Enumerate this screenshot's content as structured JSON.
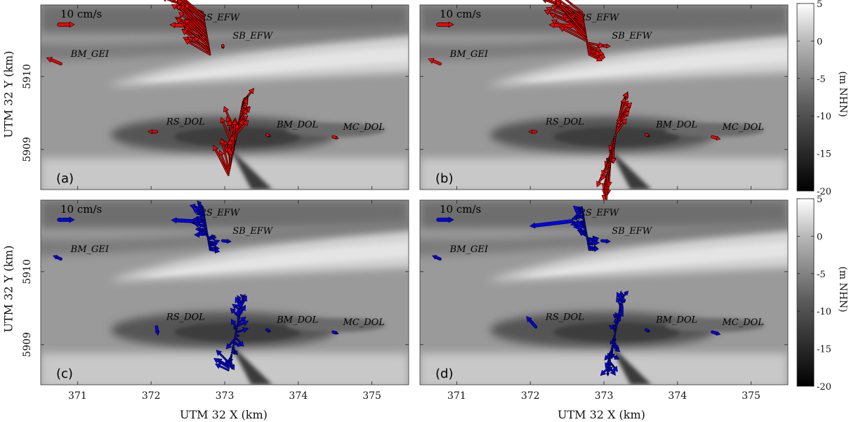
{
  "chart_data": {
    "type": "vector-field-map",
    "panels": [
      {
        "label": "(a)",
        "color": "#ff0000",
        "row": 0,
        "col": 0,
        "stations": [
          {
            "name": "RS_EFW",
            "x": 372.6,
            "y": 5910.75
          },
          {
            "name": "SB_EFW",
            "x": 373.05,
            "y": 5910.5
          },
          {
            "name": "BM_GEI",
            "x": 370.85,
            "y": 5910.25
          },
          {
            "name": "RS_DOL",
            "x": 372.15,
            "y": 5909.32
          },
          {
            "name": "BM_DOL",
            "x": 373.65,
            "y": 5909.28
          },
          {
            "name": "MC_DOL",
            "x": 374.55,
            "y": 5909.25
          }
        ]
      },
      {
        "label": "(b)",
        "color": "#ff0000",
        "row": 0,
        "col": 1,
        "stations": [
          {
            "name": "RS_EFW",
            "x": 372.6,
            "y": 5910.75
          },
          {
            "name": "SB_EFW",
            "x": 373.05,
            "y": 5910.5
          },
          {
            "name": "BM_GEI",
            "x": 370.85,
            "y": 5910.25
          },
          {
            "name": "RS_DOL",
            "x": 372.15,
            "y": 5909.32
          },
          {
            "name": "BM_DOL",
            "x": 373.65,
            "y": 5909.28
          },
          {
            "name": "MC_DOL",
            "x": 374.55,
            "y": 5909.25
          }
        ]
      },
      {
        "label": "(c)",
        "color": "#0000ff",
        "row": 1,
        "col": 0,
        "stations": [
          {
            "name": "RS_EFW",
            "x": 372.6,
            "y": 5910.75
          },
          {
            "name": "SB_EFW",
            "x": 373.05,
            "y": 5910.5
          },
          {
            "name": "BM_GEI",
            "x": 370.85,
            "y": 5910.25
          },
          {
            "name": "RS_DOL",
            "x": 372.15,
            "y": 5909.32
          },
          {
            "name": "BM_DOL",
            "x": 373.65,
            "y": 5909.28
          },
          {
            "name": "MC_DOL",
            "x": 374.55,
            "y": 5909.25
          }
        ]
      },
      {
        "label": "(d)",
        "color": "#0000ff",
        "row": 1,
        "col": 1,
        "stations": [
          {
            "name": "RS_EFW",
            "x": 372.6,
            "y": 5910.75
          },
          {
            "name": "SB_EFW",
            "x": 373.05,
            "y": 5910.5
          },
          {
            "name": "BM_GEI",
            "x": 370.85,
            "y": 5910.25
          },
          {
            "name": "RS_DOL",
            "x": 372.15,
            "y": 5909.32
          },
          {
            "name": "BM_DOL",
            "x": 373.65,
            "y": 5909.28
          },
          {
            "name": "MC_DOL",
            "x": 374.55,
            "y": 5909.25
          }
        ]
      }
    ],
    "scale_label": "10 cm/s",
    "xlabel": "UTM 32 X (km)",
    "ylabel": "UTM 32 Y (km)",
    "xlim": [
      370.5,
      375.5
    ],
    "ylim": [
      5908.45,
      5910.98
    ],
    "xticks": [
      371,
      372,
      373,
      374,
      375
    ],
    "yticks": [
      5909,
      5910
    ],
    "colorbar": {
      "label": "(m NHN)",
      "ticks": [
        5,
        0,
        -5,
        -10,
        -15,
        -20
      ],
      "range": [
        -20,
        5
      ]
    }
  }
}
